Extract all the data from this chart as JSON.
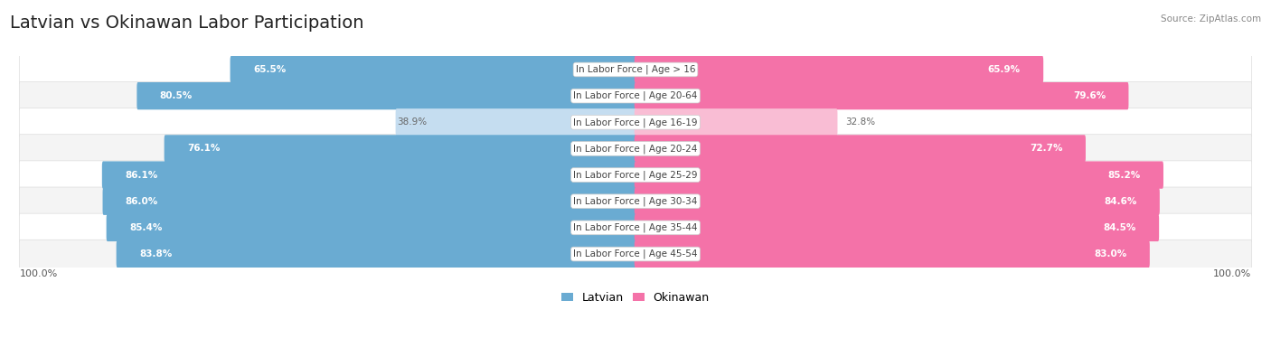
{
  "title": "Latvian vs Okinawan Labor Participation",
  "source": "Source: ZipAtlas.com",
  "categories": [
    "In Labor Force | Age > 16",
    "In Labor Force | Age 20-64",
    "In Labor Force | Age 16-19",
    "In Labor Force | Age 20-24",
    "In Labor Force | Age 25-29",
    "In Labor Force | Age 30-34",
    "In Labor Force | Age 35-44",
    "In Labor Force | Age 45-54"
  ],
  "latvian": [
    65.5,
    80.5,
    38.9,
    76.1,
    86.1,
    86.0,
    85.4,
    83.8
  ],
  "okinawan": [
    65.9,
    79.6,
    32.8,
    72.7,
    85.2,
    84.6,
    84.5,
    83.0
  ],
  "latvian_color": "#6aabd2",
  "latvian_color_light": "#c5ddf0",
  "okinawan_color": "#f472a8",
  "okinawan_color_light": "#f9bdd4",
  "row_bg_odd": "#f4f4f4",
  "row_bg_even": "#ffffff",
  "title_fontsize": 14,
  "label_fontsize": 7.5,
  "value_fontsize": 7.5,
  "max_value": 100.0,
  "legend_latvian": "Latvian",
  "legend_okinawan": "Okinawan",
  "bottom_label": "100.0%"
}
